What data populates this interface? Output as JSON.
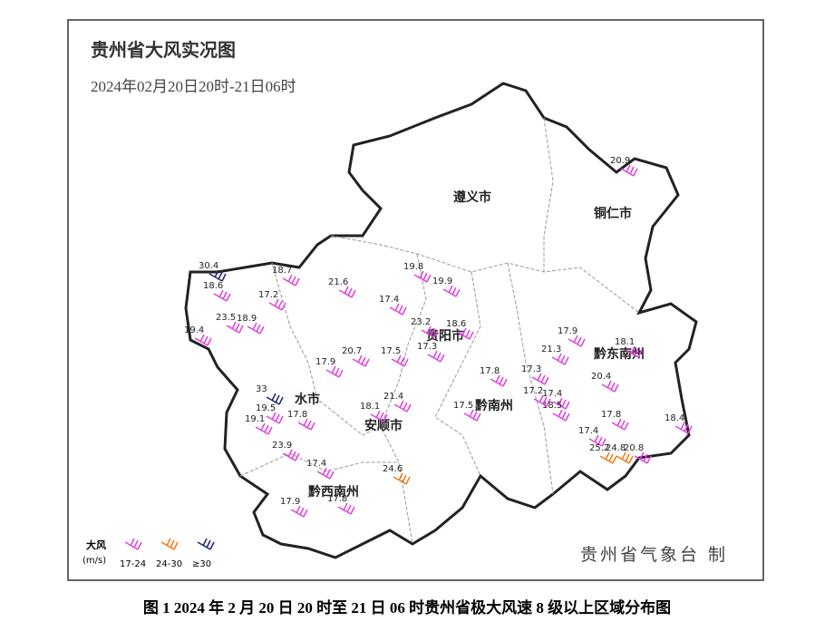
{
  "header": {
    "title": "贵州省大风实况图",
    "subtitle": "2024年02月20日20时-21日06时"
  },
  "regions": [
    "遵义市",
    "铜仁市",
    "贵阳市",
    "黔东南州",
    "黔南州",
    "安顺市",
    "水市",
    "黔西南州"
  ],
  "legend": {
    "title": "大风",
    "unit": "(m/s)"
  },
  "classes": [
    {
      "label": "17-24",
      "color": "#e23fe0",
      "stations": [
        20.9,
        19.8,
        21.6,
        17.4,
        19.9,
        18.6,
        23.2,
        17.3,
        21.3,
        17.9,
        18.1,
        20.4,
        17.8,
        17.4,
        18.5,
        17.8,
        18.4,
        17.4,
        20.8,
        17.9,
        17.8,
        17.4,
        23.9,
        17.8,
        19.1,
        19.5,
        23.5,
        19.4,
        18.6,
        18.7,
        17.2,
        18.9,
        17.9,
        20.7,
        17.5,
        21.4,
        18.1,
        17.5,
        17.3,
        17.2
      ]
    },
    {
      "label": "24-30",
      "color": "#f07a1a",
      "stations": [
        24.6,
        25.2,
        24.8
      ]
    },
    {
      "label": "≥30",
      "color": "#1c2566",
      "stations": [
        30.4,
        33.0
      ]
    }
  ],
  "credit": "贵州省气象台 制",
  "caption": "图 1 2024 年 2 月 20 日 20 时至 21 日 06 时贵州省极大风速 8 级以上区域分布图"
}
